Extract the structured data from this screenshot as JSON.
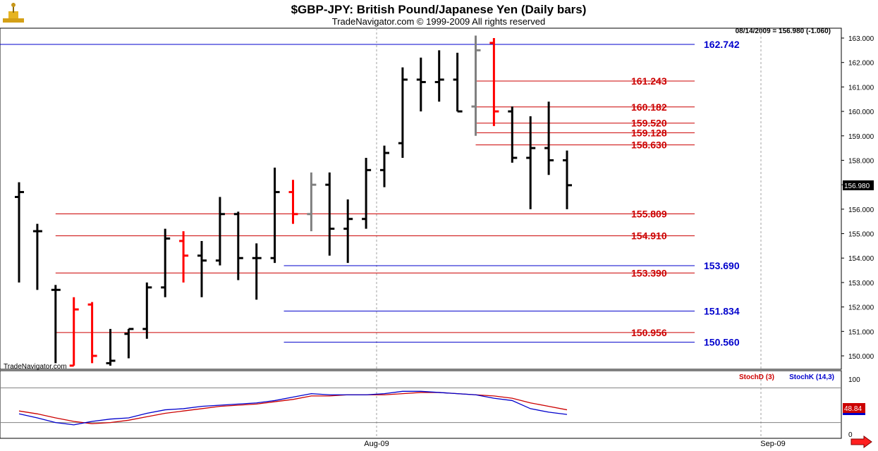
{
  "chart_data": {
    "type": "ohlc",
    "title": "$GBP-JPY:  British Pound/Japanese Yen  (Daily bars)",
    "subtitle": "TradeNavigator.com © 1999-2009 All rights reserved",
    "quote_label": "08/14/2009 = 156.980 (-1.060)",
    "last_price_label": "156.980",
    "watermark": "TradeNavigator.com",
    "price_axis": {
      "min": 149.5,
      "max": 163.2,
      "ticks": [
        "150.000",
        "151.000",
        "152.000",
        "153.000",
        "154.000",
        "155.000",
        "156.000",
        "157.000",
        "158.000",
        "159.000",
        "160.000",
        "161.000",
        "162.000",
        "163.000"
      ]
    },
    "x_labels": [
      "Aug-09",
      "Sep-09"
    ],
    "bars": [
      {
        "o": 156.5,
        "h": 157.1,
        "l": 153.0,
        "c": 156.7,
        "color": "#000000"
      },
      {
        "o": 155.1,
        "h": 155.4,
        "l": 152.7,
        "c": 155.1,
        "color": "#000000"
      },
      {
        "o": 152.7,
        "h": 152.9,
        "l": 149.7,
        "c": 152.7,
        "color": "#000000"
      },
      {
        "o": 149.6,
        "h": 152.4,
        "l": 149.6,
        "c": 151.9,
        "color": "#ff0000"
      },
      {
        "o": 152.1,
        "h": 152.2,
        "l": 149.7,
        "c": 150.0,
        "color": "#ff0000"
      },
      {
        "o": 149.7,
        "h": 151.1,
        "l": 149.6,
        "c": 149.8,
        "color": "#000000"
      },
      {
        "o": 150.9,
        "h": 151.1,
        "l": 149.9,
        "c": 151.1,
        "color": "#000000"
      },
      {
        "o": 151.1,
        "h": 153.0,
        "l": 150.7,
        "c": 152.8,
        "color": "#000000"
      },
      {
        "o": 152.8,
        "h": 155.2,
        "l": 152.4,
        "c": 154.8,
        "color": "#000000"
      },
      {
        "o": 154.7,
        "h": 155.1,
        "l": 153.0,
        "c": 154.1,
        "color": "#ff0000"
      },
      {
        "o": 154.1,
        "h": 154.7,
        "l": 152.4,
        "c": 153.9,
        "color": "#000000"
      },
      {
        "o": 153.9,
        "h": 156.5,
        "l": 153.7,
        "c": 155.8,
        "color": "#000000"
      },
      {
        "o": 155.8,
        "h": 155.9,
        "l": 153.1,
        "c": 154.0,
        "color": "#000000"
      },
      {
        "o": 154.0,
        "h": 154.6,
        "l": 152.3,
        "c": 154.0,
        "color": "#000000"
      },
      {
        "o": 154.0,
        "h": 157.7,
        "l": 153.8,
        "c": 156.7,
        "color": "#000000"
      },
      {
        "o": 156.7,
        "h": 157.2,
        "l": 155.4,
        "c": 155.8,
        "color": "#ff0000"
      },
      {
        "o": 155.8,
        "h": 157.5,
        "l": 155.1,
        "c": 157.0,
        "color": "#808080"
      },
      {
        "o": 157.0,
        "h": 157.5,
        "l": 154.1,
        "c": 155.2,
        "color": "#000000"
      },
      {
        "o": 155.2,
        "h": 156.4,
        "l": 153.8,
        "c": 155.6,
        "color": "#000000"
      },
      {
        "o": 155.6,
        "h": 158.1,
        "l": 155.2,
        "c": 157.6,
        "color": "#000000"
      },
      {
        "o": 157.6,
        "h": 158.6,
        "l": 156.9,
        "c": 158.3,
        "color": "#000000"
      },
      {
        "o": 158.7,
        "h": 161.8,
        "l": 158.1,
        "c": 161.3,
        "color": "#000000"
      },
      {
        "o": 161.3,
        "h": 162.2,
        "l": 160.0,
        "c": 161.2,
        "color": "#000000"
      },
      {
        "o": 161.2,
        "h": 162.5,
        "l": 160.4,
        "c": 161.3,
        "color": "#000000"
      },
      {
        "o": 161.3,
        "h": 162.4,
        "l": 160.0,
        "c": 160.0,
        "color": "#000000"
      },
      {
        "o": 160.2,
        "h": 163.1,
        "l": 159.0,
        "c": 162.5,
        "color": "#808080"
      },
      {
        "o": 162.8,
        "h": 163.0,
        "l": 159.4,
        "c": 160.0,
        "color": "#ff0000"
      },
      {
        "o": 160.0,
        "h": 160.2,
        "l": 157.9,
        "c": 158.1,
        "color": "#000000"
      },
      {
        "o": 158.1,
        "h": 159.8,
        "l": 156.0,
        "c": 158.5,
        "color": "#000000"
      },
      {
        "o": 158.5,
        "h": 160.4,
        "l": 157.4,
        "c": 158.0,
        "color": "#000000"
      },
      {
        "o": 158.0,
        "h": 158.4,
        "l": 156.0,
        "c": 156.98,
        "color": "#000000"
      }
    ],
    "levels": [
      {
        "value": 162.742,
        "label": "162.742",
        "color": "#0000cc",
        "start_bar": -12.5
      },
      {
        "value": 161.243,
        "label": "161.243",
        "color": "#cc0000",
        "start_bar": 25
      },
      {
        "value": 160.182,
        "label": "160.182",
        "color": "#cc0000",
        "start_bar": 25
      },
      {
        "value": 159.52,
        "label": "159.520",
        "color": "#cc0000",
        "start_bar": 25
      },
      {
        "value": 159.128,
        "label": "159.128",
        "color": "#cc0000",
        "start_bar": 25
      },
      {
        "value": 158.63,
        "label": "158.630",
        "color": "#cc0000",
        "start_bar": 25
      },
      {
        "value": 155.809,
        "label": "155.809",
        "color": "#cc0000",
        "start_bar": 2
      },
      {
        "value": 154.91,
        "label": "154.910",
        "color": "#cc0000",
        "start_bar": 2
      },
      {
        "value": 153.69,
        "label": "153.690",
        "color": "#0000cc",
        "start_bar": 14.5
      },
      {
        "value": 153.39,
        "label": "153.390",
        "color": "#cc0000",
        "start_bar": 2
      },
      {
        "value": 151.834,
        "label": "151.834",
        "color": "#0000cc",
        "start_bar": 14.5
      },
      {
        "value": 150.956,
        "label": "150.956",
        "color": "#cc0000",
        "start_bar": 2
      },
      {
        "value": 150.56,
        "label": "150.560",
        "color": "#0000cc",
        "start_bar": 14.5
      }
    ],
    "stochastic": {
      "legend_d": "StochD (3)",
      "legend_k": "StochK (14,3)",
      "d_color": "#cc0000",
      "k_color": "#0000cc",
      "ticks": [
        "100",
        "0"
      ],
      "last_label": "48.84",
      "upper_band": 80,
      "lower_band": 20,
      "k": [
        35,
        28,
        20,
        16,
        22,
        26,
        28,
        36,
        42,
        44,
        48,
        50,
        52,
        54,
        58,
        64,
        70,
        68,
        68,
        68,
        70,
        74,
        74,
        72,
        70,
        68,
        62,
        58,
        44,
        38,
        34
      ],
      "d": [
        40,
        35,
        28,
        22,
        18,
        20,
        24,
        30,
        36,
        40,
        44,
        48,
        50,
        52,
        56,
        60,
        66,
        66,
        68,
        68,
        68,
        70,
        72,
        72,
        70,
        68,
        66,
        62,
        54,
        48,
        42
      ]
    }
  }
}
